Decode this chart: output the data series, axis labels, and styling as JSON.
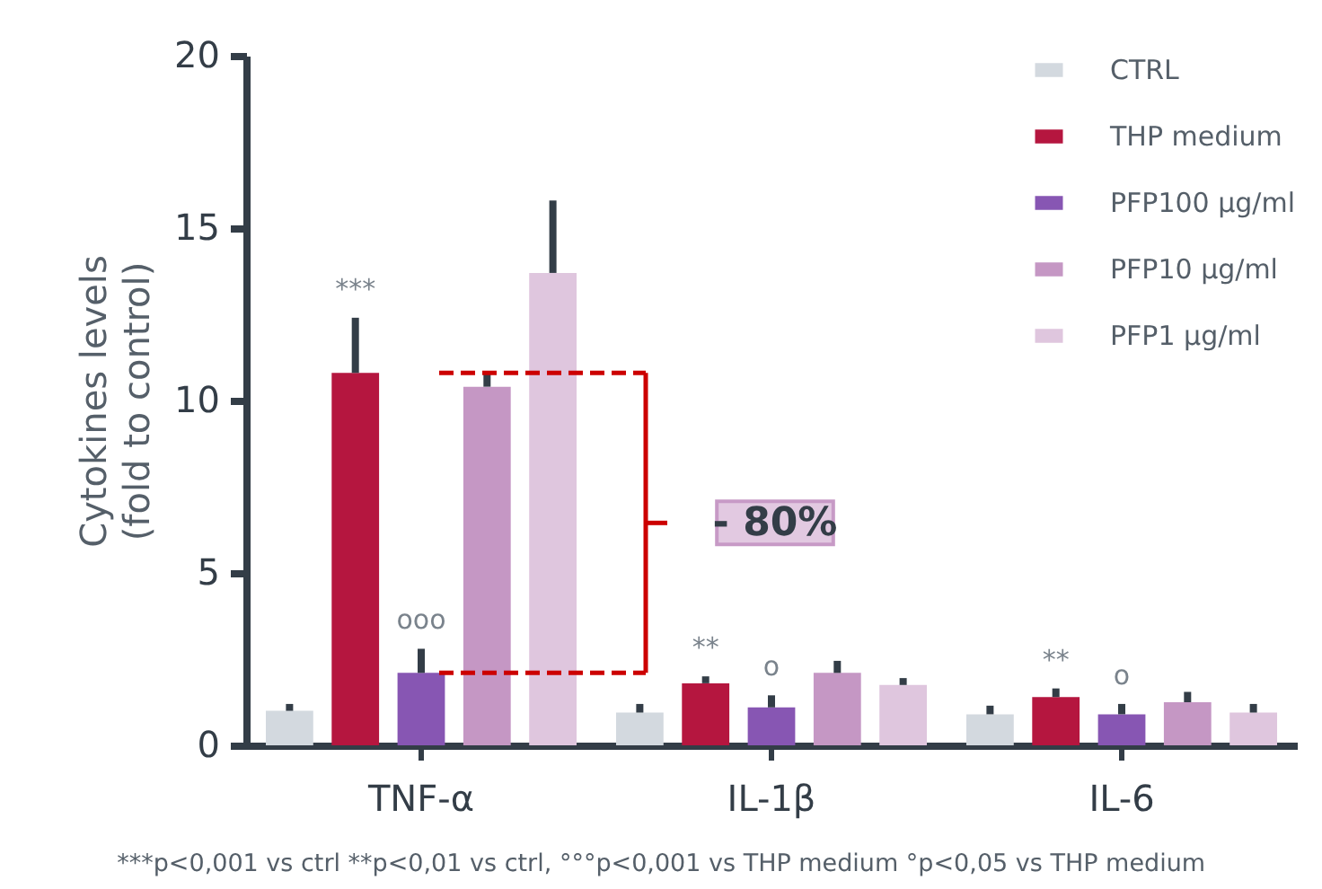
{
  "chart_data": {
    "type": "bar",
    "ylabel": "Cytokines levels\n(fold to control)",
    "categories": [
      "TNF-α",
      "IL-1β",
      "IL-6"
    ],
    "series": [
      {
        "name": "CTRL",
        "color": "#d3d9df",
        "values": [
          1.0,
          0.95,
          0.9
        ],
        "errors": [
          0.2,
          0.25,
          0.25
        ]
      },
      {
        "name": "THP medium",
        "color": "#b5163f",
        "values": [
          10.8,
          1.8,
          1.4
        ],
        "errors": [
          1.6,
          0.2,
          0.25
        ],
        "value_labels": [
          "***",
          "**",
          "**"
        ]
      },
      {
        "name": "PFP100 μg/ml",
        "color": "#8756b3",
        "values": [
          2.1,
          1.1,
          0.9
        ],
        "errors": [
          0.7,
          0.35,
          0.3
        ],
        "value_labels": [
          "ooo",
          "o",
          "o"
        ]
      },
      {
        "name": "PFP10 μg/ml",
        "color": "#c597c4",
        "values": [
          10.4,
          2.1,
          1.25
        ],
        "errors": [
          0.4,
          0.35,
          0.3
        ]
      },
      {
        "name": "PFP1 μg/ml",
        "color": "#dfc6de",
        "values": [
          13.7,
          1.75,
          0.95
        ],
        "errors": [
          2.1,
          0.2,
          0.25
        ]
      }
    ],
    "ylim": [
      0,
      20
    ],
    "yticks": [
      0,
      5,
      10,
      15,
      20
    ],
    "legend": "top right",
    "ref_lines": [
      {
        "axis": "y",
        "value": 10.8,
        "color": "#cc0000",
        "line_style": "dashed"
      },
      {
        "axis": "y",
        "value": 2.1,
        "color": "#cc0000",
        "line_style": "dashed"
      }
    ],
    "annotations": [
      "- 80%",
      "***p<0,001 vs ctrl **p<0,01 vs ctrl,  °°°p<0,001 vs THP medium °p<0,05 vs THP medium"
    ]
  }
}
